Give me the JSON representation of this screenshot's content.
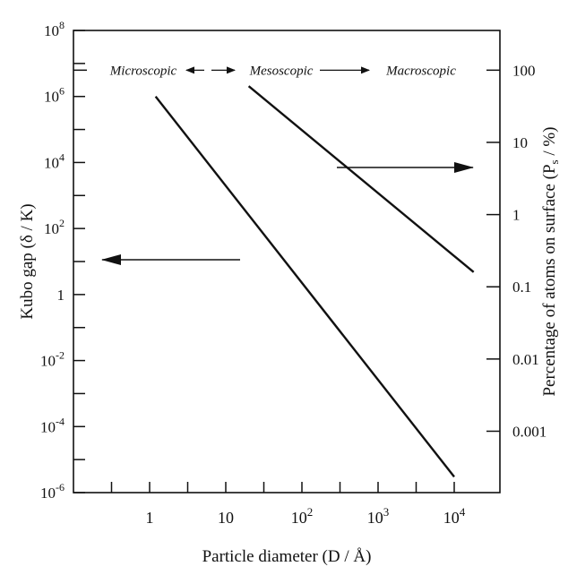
{
  "chart_data": {
    "type": "line",
    "title": "",
    "xlabel": "Particle diameter (D / Å)",
    "ylabel_left": "Kubo gap (δ / K)",
    "ylabel_right": "Percentage of atoms on surface (P",
    "ylabel_right_sub": "s",
    "ylabel_right_tail": " / %)",
    "x_scale": "log",
    "xlim_log10": [
      -1,
      4.6
    ],
    "x_ticks": [
      {
        "value": 1,
        "label": "1"
      },
      {
        "value": 10,
        "label": "10"
      },
      {
        "value": 100,
        "base": "10",
        "exp": "2"
      },
      {
        "value": 1000,
        "base": "10",
        "exp": "3"
      },
      {
        "value": 10000,
        "base": "10",
        "exp": "4"
      }
    ],
    "y_left_scale": "log",
    "y_left_range_log10": [
      -6,
      8
    ],
    "y_left_ticks": [
      {
        "value": 100000000.0,
        "base": "10",
        "exp": "8"
      },
      {
        "value": 1000000.0,
        "base": "10",
        "exp": "6"
      },
      {
        "value": 10000.0,
        "base": "10",
        "exp": "4"
      },
      {
        "value": 100,
        "base": "10",
        "exp": "2"
      },
      {
        "value": 1,
        "label": "1"
      },
      {
        "value": 0.01,
        "base": "10",
        "exp": "-2"
      },
      {
        "value": 0.0001,
        "base": "10",
        "exp": "-4"
      },
      {
        "value": 1e-06,
        "base": "10",
        "exp": "-6"
      }
    ],
    "y_right_scale": "log",
    "y_right_range_log10": [
      -3.85,
      2.55
    ],
    "y_right_ticks": [
      {
        "value": 100,
        "label": "100"
      },
      {
        "value": 10,
        "label": "10"
      },
      {
        "value": 1,
        "label": "1"
      },
      {
        "value": 0.1,
        "label": "0.1"
      },
      {
        "value": 0.01,
        "label": "0.01"
      },
      {
        "value": 0.001,
        "label": "0.001"
      }
    ],
    "regions": [
      {
        "label": "Microscopic"
      },
      {
        "label": "Mesoscopic"
      },
      {
        "label": "Macroscopic"
      }
    ],
    "series": [
      {
        "axis": "left",
        "x": [
          1.2,
          10000
        ],
        "y": [
          1000000,
          3e-06
        ]
      },
      {
        "axis": "right",
        "x": [
          20,
          18000
        ],
        "y": [
          60,
          0.16
        ]
      }
    ],
    "axis_indicators": [
      {
        "points_to": "left"
      },
      {
        "points_to": "right"
      }
    ],
    "grid": false,
    "legend": "none"
  }
}
